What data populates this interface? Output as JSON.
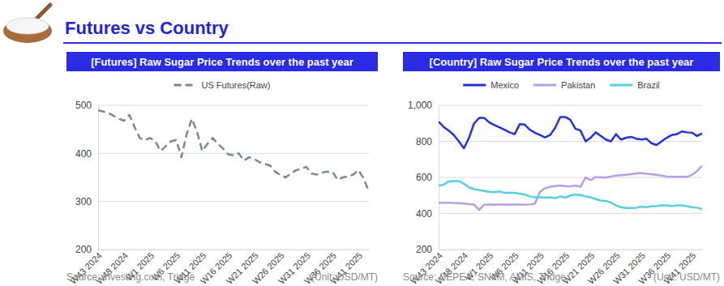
{
  "title": "Futures vs Country",
  "chart_data": [
    {
      "type": "line",
      "title": "[Futures] Raw Sugar Price Trends over the past year",
      "source": "Source: investing.com, Tridge",
      "unit": "(Unit: USD/MT)",
      "categories": [
        "W43 2024",
        null,
        null,
        null,
        null,
        "W48 2024",
        null,
        null,
        null,
        null,
        "W1 2025",
        null,
        null,
        null,
        null,
        "W6 2025",
        null,
        null,
        null,
        null,
        "W11 2025",
        null,
        null,
        null,
        null,
        "W16 2025",
        null,
        null,
        null,
        null,
        "W21 2025",
        null,
        null,
        null,
        null,
        "W26 2025",
        null,
        null,
        null,
        null,
        "W31 2025",
        null,
        null,
        null,
        null,
        "W36 2025",
        null,
        null,
        null,
        null,
        "W41 2025",
        null,
        null
      ],
      "series": [
        {
          "name": "US Futures(Raw)",
          "color": "#7d8896",
          "line_style": "dashed",
          "values": [
            490,
            487,
            484,
            478,
            472,
            468,
            480,
            455,
            432,
            428,
            432,
            425,
            405,
            415,
            425,
            428,
            392,
            440,
            472,
            445,
            405,
            420,
            432,
            420,
            410,
            398,
            396,
            400,
            385,
            392,
            388,
            382,
            378,
            375,
            362,
            355,
            350,
            358,
            365,
            368,
            372,
            358,
            356,
            360,
            362,
            362,
            345,
            350,
            352,
            356,
            365,
            348,
            320
          ]
        }
      ],
      "ylim": [
        200,
        500
      ],
      "yticks": [
        200,
        300,
        400,
        500
      ],
      "grid": true,
      "legend": "top"
    },
    {
      "type": "line",
      "title": "[Country] Raw Sugar Price Trends over the past year",
      "source": "Source: CEPEA, SNIIM, AMIS, Tridge",
      "unit": "(Unit: USD/MT)",
      "categories": [
        "W43 2024",
        null,
        null,
        null,
        null,
        "W48 2024",
        null,
        null,
        null,
        null,
        "W1 2025",
        null,
        null,
        null,
        null,
        "W6 2025",
        null,
        null,
        null,
        null,
        "W11 2025",
        null,
        null,
        null,
        null,
        "W16 2025",
        null,
        null,
        null,
        null,
        "W21 2025",
        null,
        null,
        null,
        null,
        "W26 2025",
        null,
        null,
        null,
        null,
        "W31 2025",
        null,
        null,
        null,
        null,
        "W36 2025",
        null,
        null,
        null,
        null,
        "W41 2025",
        null,
        null
      ],
      "series": [
        {
          "name": "Mexico",
          "color": "#2233dd",
          "line_style": "solid",
          "values": [
            910,
            880,
            860,
            835,
            800,
            762,
            820,
            900,
            930,
            930,
            905,
            890,
            878,
            865,
            850,
            840,
            895,
            893,
            865,
            848,
            835,
            822,
            835,
            875,
            935,
            935,
            920,
            870,
            860,
            800,
            820,
            850,
            830,
            810,
            800,
            840,
            810,
            820,
            825,
            815,
            810,
            815,
            790,
            780,
            800,
            820,
            835,
            840,
            855,
            850,
            848,
            830,
            845
          ]
        },
        {
          "name": "Pakistan",
          "color": "#b89ee6",
          "line_style": "solid",
          "values": [
            460,
            460,
            460,
            458,
            457,
            455,
            452,
            450,
            420,
            450,
            450,
            448,
            450,
            450,
            448,
            450,
            450,
            448,
            450,
            455,
            520,
            540,
            548,
            552,
            555,
            552,
            550,
            555,
            548,
            600,
            585,
            602,
            600,
            600,
            605,
            610,
            612,
            615,
            618,
            622,
            625,
            620,
            618,
            615,
            610,
            605,
            603,
            603,
            605,
            603,
            615,
            635,
            665
          ]
        },
        {
          "name": "Brazil",
          "color": "#56cfe1",
          "line_style": "solid",
          "values": [
            555,
            560,
            578,
            580,
            580,
            565,
            545,
            535,
            530,
            525,
            520,
            518,
            522,
            515,
            515,
            515,
            510,
            505,
            495,
            490,
            490,
            488,
            490,
            485,
            495,
            488,
            500,
            505,
            502,
            495,
            490,
            480,
            472,
            470,
            460,
            445,
            435,
            430,
            430,
            432,
            438,
            435,
            440,
            440,
            445,
            445,
            440,
            445,
            445,
            440,
            435,
            432,
            425
          ]
        }
      ],
      "ylim": [
        200,
        1000
      ],
      "yticks": [
        200,
        400,
        600,
        800,
        {
          "value": 1000,
          "label": "1,000"
        }
      ],
      "grid": true,
      "legend": "top"
    }
  ]
}
